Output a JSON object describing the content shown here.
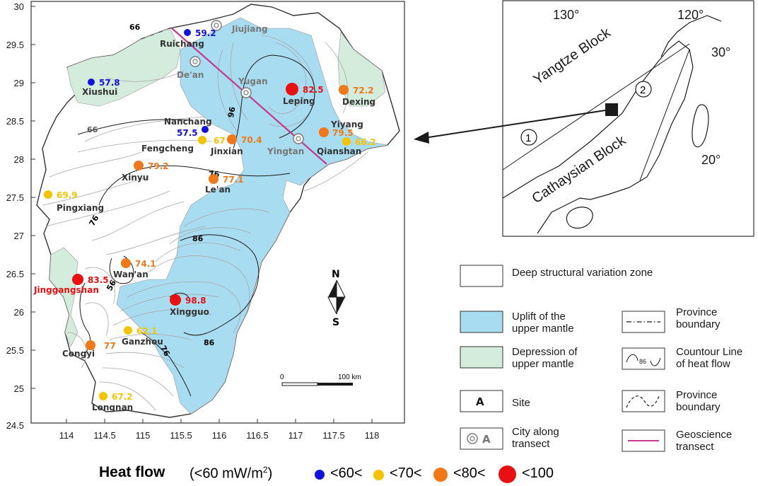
{
  "map": {
    "y_ticks": [
      "30",
      "29.5",
      "29",
      "28.5",
      "28",
      "27.5",
      "27",
      "26.5",
      "26",
      "25.5",
      "25",
      "24.5"
    ],
    "x_ticks": [
      "114",
      "114.5",
      "115",
      "115.5",
      "116",
      "116.5",
      "117",
      "117.5",
      "118"
    ],
    "contour_labels": [
      "66",
      "66",
      "76",
      "76",
      "86",
      "86",
      "76",
      "96",
      "56"
    ],
    "scale_label": "100 km",
    "scale_zero": "0",
    "north_label": "N",
    "south_label": "S",
    "cities": [
      {
        "name": "Jiujiang"
      },
      {
        "name": "De'an"
      },
      {
        "name": "Yugan"
      },
      {
        "name": "Yingtan"
      }
    ],
    "sites": [
      {
        "name": "Ruichang",
        "value": "59.2",
        "class": "<60",
        "color": "#1010e0"
      },
      {
        "name": "Xiushui",
        "value": "57.8",
        "class": "<60",
        "color": "#1010e0"
      },
      {
        "name": "Nanchang",
        "value": "57.5",
        "class": "<60",
        "color": "#1010e0"
      },
      {
        "name": "Fengcheng",
        "value": "67",
        "class": "<70",
        "color": "#f5c400"
      },
      {
        "name": "Jinxian",
        "value": "70.4",
        "class": "<80",
        "color": "#f07818"
      },
      {
        "name": "Leping",
        "value": "82.5",
        "class": "<100",
        "color": "#e81010"
      },
      {
        "name": "Dexing",
        "value": "72.2",
        "class": "<80",
        "color": "#f07818"
      },
      {
        "name": "Yiyang",
        "value": "79.5",
        "class": "<80",
        "color": "#f07818"
      },
      {
        "name": "Qianshan",
        "value": "66.2",
        "class": "<70",
        "color": "#f5c400"
      },
      {
        "name": "Xinyu",
        "value": "79.2",
        "class": "<80",
        "color": "#f07818"
      },
      {
        "name": "Le'an",
        "value": "77.1",
        "class": "<80",
        "color": "#f07818"
      },
      {
        "name": "Pingxiang",
        "value": "69.9",
        "class": "<70",
        "color": "#f5c400"
      },
      {
        "name": "Wan'an",
        "value": "74.1",
        "class": "<80",
        "color": "#f07818"
      },
      {
        "name": "Jinggangshan",
        "value": "83.5",
        "class": "<100",
        "color": "#e81010"
      },
      {
        "name": "Xingguo",
        "value": "98.8",
        "class": "<100",
        "color": "#e81010"
      },
      {
        "name": "Ganzhou",
        "value": "62.1",
        "class": "<70",
        "color": "#f5c400"
      },
      {
        "name": "Congyi",
        "value": "77",
        "class": "<80",
        "color": "#f07818"
      },
      {
        "name": "Longnan",
        "value": "67.2",
        "class": "<70",
        "color": "#f5c400"
      }
    ]
  },
  "inset": {
    "labels": {
      "lon130": "130°",
      "lon120": "120°",
      "lat30": "30°",
      "lat20": "20°",
      "yangtze": "Yangtze Block",
      "cathaysian": "Cathaysian Block",
      "n1": "1",
      "n2": "2"
    }
  },
  "legend": {
    "deep_zone": "Deep structural variation zone",
    "uplift": "Uplift of the upper mantle",
    "depression": "Depression of upper mantle",
    "site": "Site",
    "site_symbol": "A",
    "city": "City along transect",
    "city_symbol": "A",
    "province_boundary_1": "Province boundary",
    "contour": "Countour Line of heat flow",
    "contour_symbol": "86",
    "province_boundary_2": "Province boundary",
    "transect": "Geoscience transect"
  },
  "footer": {
    "title": "Heat flow",
    "unit_prefix": "(<60 mW/m",
    "unit_sup": "2",
    "unit_suffix": ")",
    "classes": [
      {
        "label": "<60<",
        "color": "#1010e0"
      },
      {
        "label": "<70<",
        "color": "#f5c400"
      },
      {
        "label": "<80<",
        "color": "#f07818"
      },
      {
        "label": "<100",
        "color": "#e81010"
      }
    ]
  },
  "colors": {
    "uplift": "#a8dcf0",
    "depression": "#d4ecdc",
    "transect": "#c8388c"
  }
}
